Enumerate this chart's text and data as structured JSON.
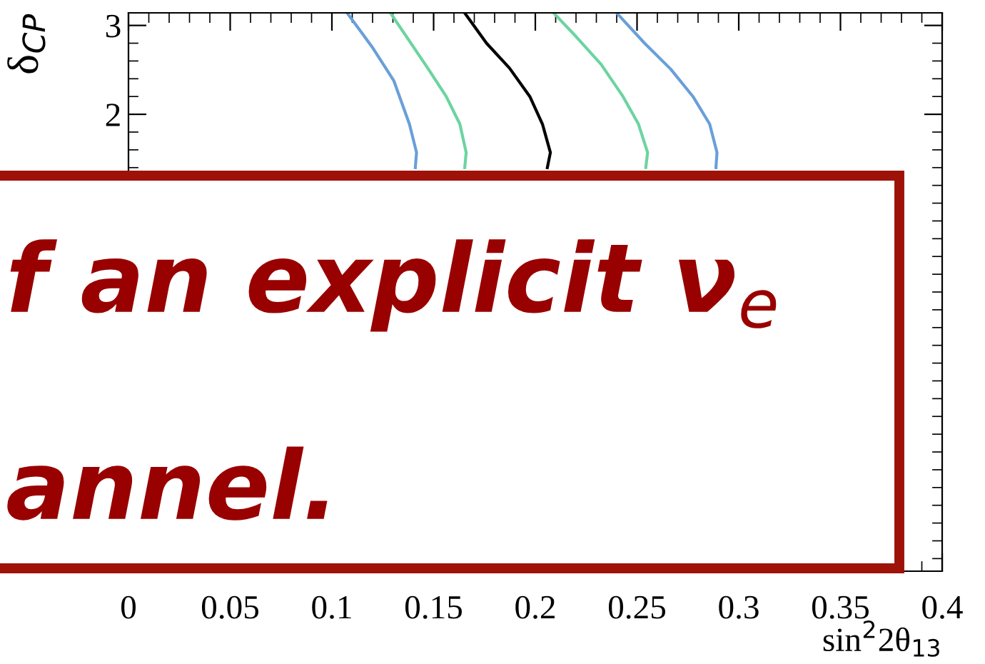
{
  "chart_data": {
    "type": "line",
    "xlabel": "sin$^{2}$2θ$_{13}$",
    "ylabel": "δ$_{CP}$",
    "xlim": [
      0,
      0.4
    ],
    "xticks": [
      0,
      0.05,
      0.1,
      0.15,
      0.2,
      0.25,
      0.3,
      0.35,
      0.4
    ],
    "ylim": [
      -3.1416,
      3.1416
    ],
    "yticks": [
      2,
      3
    ],
    "series": [
      {
        "color": "#6a9fd8",
        "x": [
          0.1075,
          0.1197,
          0.1304,
          0.1381,
          0.1416,
          0.141
        ],
        "values": [
          3.14,
          2.76,
          2.38,
          1.89,
          1.57,
          1.4
        ]
      },
      {
        "color": "#6cd4a0",
        "x": [
          0.1288,
          0.1471,
          0.1562,
          0.1629,
          0.166,
          0.1653
        ],
        "values": [
          3.14,
          2.52,
          2.2,
          1.89,
          1.57,
          1.4
        ]
      },
      {
        "color": "#000000",
        "x": [
          0.1653,
          0.176,
          0.1873,
          0.1973,
          0.2035,
          0.2074,
          0.2059
        ],
        "values": [
          3.14,
          2.8,
          2.52,
          2.2,
          1.89,
          1.57,
          1.4
        ]
      },
      {
        "color": "#6cd4a0",
        "x": [
          0.209,
          0.2202,
          0.2324,
          0.2431,
          0.2507,
          0.2552,
          0.2543
        ],
        "values": [
          3.14,
          2.87,
          2.56,
          2.2,
          1.89,
          1.57,
          1.4
        ]
      },
      {
        "color": "#6a9fd8",
        "x": [
          0.24,
          0.2537,
          0.2665,
          0.2775,
          0.2857,
          0.2893,
          0.2888
        ],
        "values": [
          3.14,
          2.8,
          2.51,
          2.2,
          1.89,
          1.57,
          1.4
        ]
      }
    ],
    "annotations": [
      "f an explicit ν$_{e}$",
      "annel."
    ],
    "grid": false,
    "legend": false,
    "marker": "none",
    "line_style": "solid"
  }
}
